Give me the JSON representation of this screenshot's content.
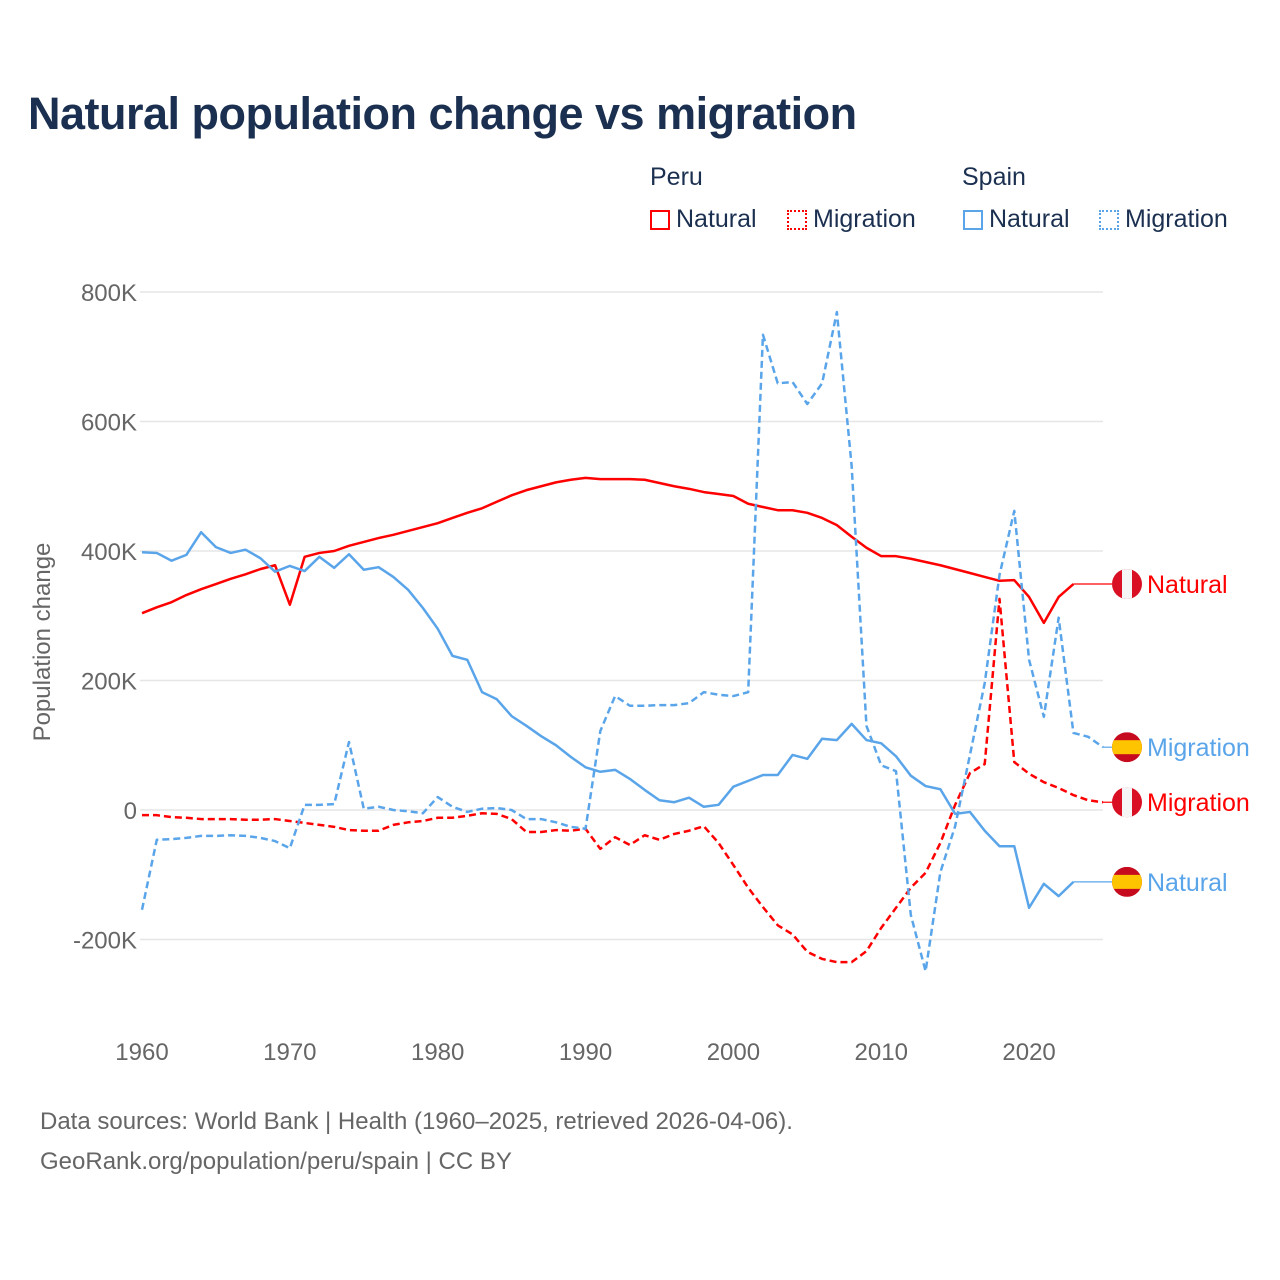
{
  "title": "Natural population change vs migration",
  "legend": {
    "groups": [
      {
        "name": "Peru",
        "items": [
          "Natural",
          "Migration"
        ]
      },
      {
        "name": "Spain",
        "items": [
          "Natural",
          "Migration"
        ]
      }
    ]
  },
  "source": {
    "line1": "Data sources: World Bank | Health (1960–2025, retrieved 2026-04-06).",
    "line2": "GeoRank.org/population/peru/spain | CC BY"
  },
  "colors": {
    "peru": "#ff0000",
    "spain": "#5aa5ea",
    "grid": "#e6e6e6",
    "text": "#1b3050",
    "tick": "#666666"
  },
  "chart_data": {
    "type": "line",
    "title": "Natural population change vs migration",
    "xlabel": "",
    "ylabel": "Population change",
    "xlim": [
      1960,
      2025
    ],
    "ylim": [
      -300,
      800
    ],
    "xticks": [
      {
        "v": 1960,
        "label": "1960"
      },
      {
        "v": 1970,
        "label": "1970"
      },
      {
        "v": 1980,
        "label": "1980"
      },
      {
        "v": 1990,
        "label": "1990"
      },
      {
        "v": 2000,
        "label": "2000"
      },
      {
        "v": 2010,
        "label": "2010"
      },
      {
        "v": 2020,
        "label": "2020"
      }
    ],
    "yticks": [
      {
        "v": -200,
        "label": "-200K"
      },
      {
        "v": 0,
        "label": "0"
      },
      {
        "v": 200,
        "label": "200K"
      },
      {
        "v": 400,
        "label": "400K"
      },
      {
        "v": 600,
        "label": "600K"
      },
      {
        "v": 800,
        "label": "800K"
      }
    ],
    "grid": true,
    "units": "thousands",
    "series": [
      {
        "name": "Peru Natural",
        "country": "peru",
        "style": "solid",
        "end_label": "Natural",
        "start": 1960,
        "values": [
          304,
          313,
          321,
          332,
          341,
          349,
          357,
          364,
          372,
          378,
          317,
          391,
          397,
          400,
          408,
          414,
          420,
          425,
          431,
          437,
          443,
          451,
          459,
          466,
          476,
          486,
          494,
          500,
          506,
          510,
          513,
          511,
          511,
          511,
          510,
          505,
          500,
          496,
          491,
          488,
          485,
          473,
          468,
          463,
          463,
          459,
          451,
          440,
          422,
          405,
          392,
          392,
          388,
          383,
          378,
          372,
          366,
          360,
          354,
          355,
          329,
          289,
          329,
          349
        ]
      },
      {
        "name": "Peru Migration",
        "country": "peru",
        "style": "dashed",
        "end_label": "Migration",
        "start": 1960,
        "values": [
          -8,
          -8,
          -11,
          -12,
          -14,
          -14,
          -14,
          -15,
          -15,
          -14,
          -17,
          -20,
          -23,
          -26,
          -31,
          -32,
          -32,
          -23,
          -19,
          -17,
          -12,
          -12,
          -9,
          -5,
          -6,
          -14,
          -34,
          -34,
          -31,
          -32,
          -29,
          -60,
          -42,
          -54,
          -39,
          -46,
          -37,
          -32,
          -25,
          -51,
          -85,
          -120,
          -150,
          -178,
          -192,
          -219,
          -230,
          -235,
          -235,
          -218,
          -182,
          -151,
          -120,
          -97,
          -51,
          8,
          57,
          71,
          326,
          74,
          56,
          43,
          34,
          23,
          15,
          12
        ]
      },
      {
        "name": "Spain Natural",
        "country": "spain",
        "style": "solid",
        "end_label": "Natural",
        "start": 1960,
        "values": [
          398,
          397,
          385,
          394,
          429,
          406,
          397,
          402,
          389,
          368,
          377,
          369,
          391,
          374,
          395,
          371,
          375,
          360,
          340,
          312,
          280,
          238,
          232,
          182,
          171,
          145,
          130,
          114,
          100,
          82,
          66,
          59,
          62,
          48,
          31,
          15,
          12,
          19,
          5,
          8,
          36,
          45,
          54,
          54,
          85,
          79,
          110,
          108,
          133,
          108,
          103,
          83,
          53,
          37,
          32,
          -6,
          -3,
          -32,
          -56,
          -56,
          -151,
          -114,
          -133,
          -111
        ]
      },
      {
        "name": "Spain Migration",
        "country": "spain",
        "style": "dashed",
        "end_label": "Migration",
        "start": 1960,
        "values": [
          -154,
          -46,
          -45,
          -43,
          -40,
          -40,
          -39,
          -40,
          -43,
          -48,
          -59,
          8,
          8,
          9,
          105,
          2,
          5,
          0,
          -2,
          -5,
          20,
          5,
          -3,
          2,
          3,
          0,
          -14,
          -14,
          -19,
          -26,
          -29,
          122,
          176,
          161,
          161,
          162,
          162,
          165,
          182,
          178,
          176,
          182,
          734,
          659,
          661,
          627,
          659,
          769,
          531,
          130,
          69,
          60,
          -162,
          -249,
          -96,
          -25,
          85,
          196,
          363,
          462,
          232,
          144,
          297,
          119,
          113,
          97
        ]
      }
    ]
  }
}
